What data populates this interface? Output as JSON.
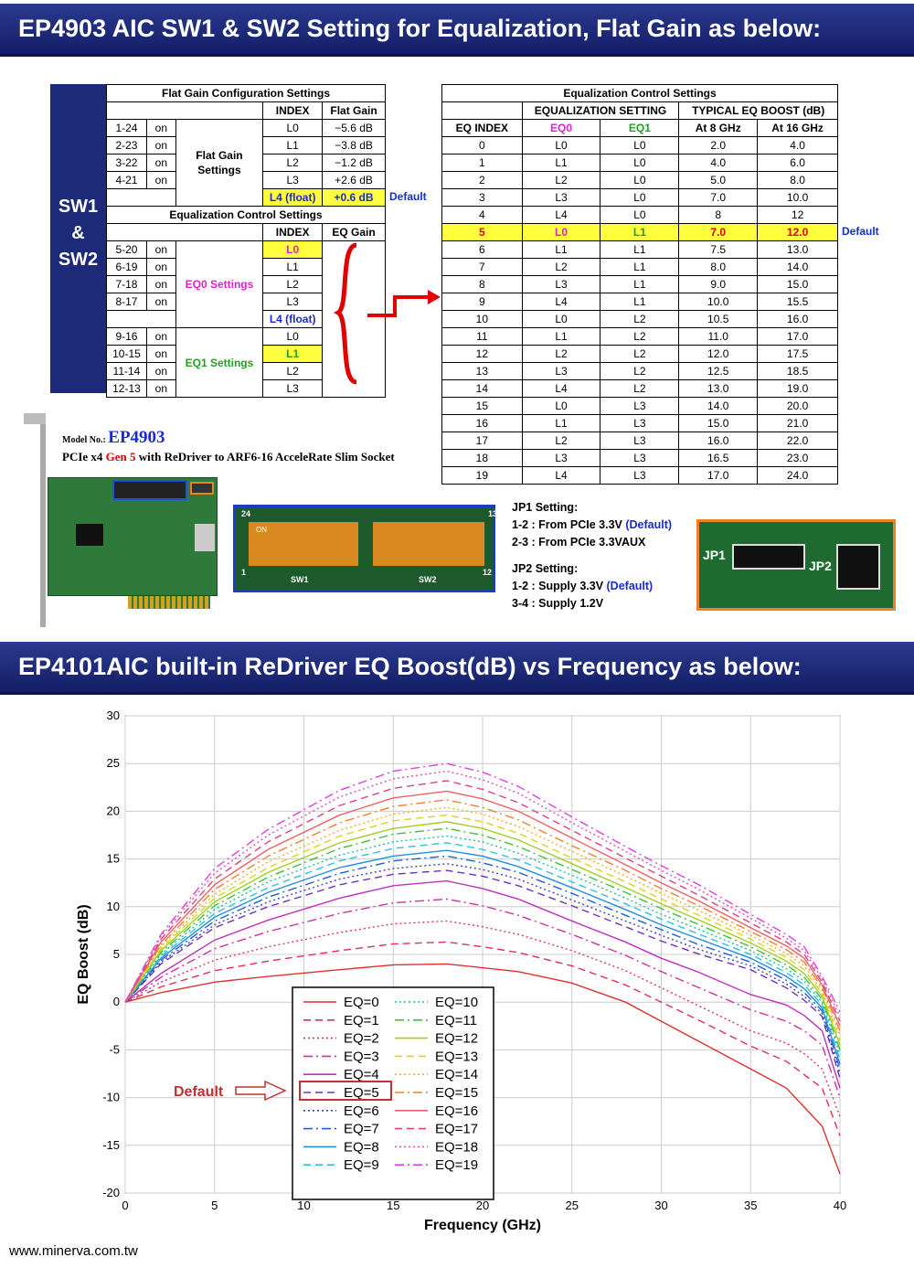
{
  "banner1": "EP4903 AIC SW1 & SW2 Setting for Equalization, Flat Gain as below:",
  "banner2": "EP4101AIC built-in ReDriver EQ Boost(dB) vs Frequency as below:",
  "sw_label": [
    "SW1",
    "&",
    "SW2"
  ],
  "left_table": {
    "title": "Flat Gain Configuration Settings",
    "h_index": "INDEX",
    "h_flat": "Flat Gain",
    "flat_rows": [
      [
        "1-24",
        "on",
        "L0",
        "−5.6 dB"
      ],
      [
        "2-23",
        "on",
        "L1",
        "−3.8 dB"
      ],
      [
        "3-22",
        "on",
        "L2",
        "−1.2 dB"
      ],
      [
        "4-21",
        "on",
        "L3",
        "+2.6 dB"
      ]
    ],
    "flat_group": "Flat Gain Settings",
    "float_idx": "L4 (float)",
    "float_gain": "+0.6 dB",
    "default": "Default",
    "eq_title": "Equalization Control Settings",
    "h_index2": "INDEX",
    "h_eqgain": "EQ Gain",
    "eq0_rows": [
      [
        "5-20",
        "on",
        "L0"
      ],
      [
        "6-19",
        "on",
        "L1"
      ],
      [
        "7-18",
        "on",
        "L2"
      ],
      [
        "8-17",
        "on",
        "L3"
      ]
    ],
    "eq0_float": "L4 (float)",
    "eq0_group": "EQ0 Settings",
    "eq1_rows": [
      [
        "9-16",
        "on",
        "L0"
      ],
      [
        "10-15",
        "on",
        "L1"
      ],
      [
        "11-14",
        "on",
        "L2"
      ],
      [
        "12-13",
        "on",
        "L3"
      ]
    ],
    "eq1_group": "EQ1 Settings"
  },
  "right_table": {
    "title": "Equalization Control Settings",
    "h_eqset": "EQUALIZATION SETTING",
    "h_boost": "TYPICAL EQ BOOST (dB)",
    "h_index": "EQ INDEX",
    "h_eq0": "EQ0",
    "h_eq1": "EQ1",
    "h_8": "At 8 GHz",
    "h_16": "At 16 GHz",
    "rows": [
      [
        "0",
        "L0",
        "L0",
        "2.0",
        "4.0"
      ],
      [
        "1",
        "L1",
        "L0",
        "4.0",
        "6.0"
      ],
      [
        "2",
        "L2",
        "L0",
        "5.0",
        "8.0"
      ],
      [
        "3",
        "L3",
        "L0",
        "7.0",
        "10.0"
      ],
      [
        "4",
        "L4",
        "L0",
        "8",
        "12"
      ],
      [
        "5",
        "L0",
        "L1",
        "7.0",
        "12.0"
      ],
      [
        "6",
        "L1",
        "L1",
        "7.5",
        "13.0"
      ],
      [
        "7",
        "L2",
        "L1",
        "8.0",
        "14.0"
      ],
      [
        "8",
        "L3",
        "L1",
        "9.0",
        "15.0"
      ],
      [
        "9",
        "L4",
        "L1",
        "10.0",
        "15.5"
      ],
      [
        "10",
        "L0",
        "L2",
        "10.5",
        "16.0"
      ],
      [
        "11",
        "L1",
        "L2",
        "11.0",
        "17.0"
      ],
      [
        "12",
        "L2",
        "L2",
        "12.0",
        "17.5"
      ],
      [
        "13",
        "L3",
        "L2",
        "12.5",
        "18.5"
      ],
      [
        "14",
        "L4",
        "L2",
        "13.0",
        "19.0"
      ],
      [
        "15",
        "L0",
        "L3",
        "14.0",
        "20.0"
      ],
      [
        "16",
        "L1",
        "L3",
        "15.0",
        "21.0"
      ],
      [
        "17",
        "L2",
        "L3",
        "16.0",
        "22.0"
      ],
      [
        "18",
        "L3",
        "L3",
        "16.5",
        "23.0"
      ],
      [
        "19",
        "L4",
        "L3",
        "17.0",
        "24.0"
      ]
    ],
    "default": "Default"
  },
  "model": {
    "label": "Model No.:",
    "name": "EP4903",
    "line_pre": "PCIe x4 ",
    "gen": "Gen 5",
    "line_post": " with ReDriver to ARF6-16 AcceleRate Slim Socket"
  },
  "dip": {
    "sw1": "SW1",
    "sw2": "SW2",
    "n24": "24",
    "n13": "13",
    "n12": "12",
    "n1": "1",
    "on": "ON"
  },
  "jp": {
    "jp1_title": "JP1 Setting:",
    "jp1_a": "1-2 : From PCIe 3.3V ",
    "jp1_a_def": "(Default)",
    "jp1_b": "2-3 : From PCIe 3.3VAUX",
    "jp2_title": "JP2 Setting:",
    "jp2_a": "1-2 : Supply 3.3V ",
    "jp2_a_def": "(Default)",
    "jp2_b": "3-4 : Supply 1.2V",
    "photo_jp1": "JP1",
    "photo_jp2": "JP2"
  },
  "chart_data": {
    "type": "line",
    "xlabel": "Frequency (GHz)",
    "ylabel": "EQ Boost (dB)",
    "xlim": [
      0,
      40
    ],
    "ylim": [
      -20,
      30
    ],
    "xticks": [
      0,
      5,
      10,
      15,
      20,
      25,
      30,
      35,
      40
    ],
    "yticks": [
      -20,
      -15,
      -10,
      -5,
      0,
      5,
      10,
      15,
      20,
      25,
      30
    ],
    "grid": true,
    "legend": "bottom-center",
    "x": [
      0,
      2,
      5,
      8,
      12,
      15,
      18,
      20,
      22,
      25,
      28,
      30,
      32,
      35,
      37,
      38,
      39,
      40
    ],
    "series": [
      {
        "name": "EQ=0",
        "color": "#e03030",
        "values": [
          0,
          1.0,
          2.1,
          2.7,
          3.4,
          3.9,
          4.0,
          3.6,
          3.2,
          2.0,
          0,
          -2,
          -4,
          -7,
          -9,
          -11,
          -13,
          -18
        ]
      },
      {
        "name": "EQ=1",
        "color": "#e03050",
        "values": [
          0,
          1.6,
          3.3,
          4.3,
          5.4,
          6.1,
          6.3,
          5.8,
          5.2,
          3.8,
          1.8,
          0,
          -1.8,
          -4.6,
          -6.2,
          -7.6,
          -9,
          -14
        ]
      },
      {
        "name": "EQ=2",
        "color": "#e03070",
        "values": [
          0,
          2.1,
          4.4,
          5.8,
          7.3,
          8.2,
          8.5,
          7.9,
          7.1,
          5.4,
          3.3,
          1.5,
          -0.3,
          -3,
          -4.3,
          -5.4,
          -7,
          -12
        ]
      },
      {
        "name": "EQ=3",
        "color": "#d030a0",
        "values": [
          0,
          2.6,
          5.6,
          7.4,
          9.3,
          10.4,
          10.8,
          10.1,
          9.1,
          7.1,
          4.9,
          3.2,
          1.6,
          -0.8,
          -2,
          -3,
          -4.5,
          -10
        ]
      },
      {
        "name": "EQ=4",
        "color": "#c030c0",
        "values": [
          0,
          3.0,
          6.5,
          8.6,
          10.9,
          12.2,
          12.7,
          11.9,
          10.8,
          8.5,
          6.3,
          4.6,
          3.2,
          0.8,
          -0.3,
          -1.4,
          -3,
          -9
        ]
      },
      {
        "name": "EQ=5",
        "color": "#7030c0",
        "values": [
          0,
          4.0,
          7.8,
          10.0,
          12.3,
          13.4,
          13.8,
          13.2,
          12.2,
          10.1,
          7.9,
          6.4,
          5.1,
          3.4,
          1.5,
          0.2,
          -1.5,
          -8
        ]
      },
      {
        "name": "EQ=6",
        "color": "#4040c0",
        "values": [
          0,
          4.2,
          8.1,
          10.5,
          12.9,
          14.0,
          14.5,
          13.9,
          12.9,
          10.7,
          8.5,
          7.0,
          5.6,
          3.8,
          1.9,
          0.6,
          -1.2,
          -7.5
        ]
      },
      {
        "name": "EQ=7",
        "color": "#2060d0",
        "values": [
          0,
          4.4,
          8.5,
          11.0,
          13.5,
          14.8,
          15.3,
          14.6,
          13.6,
          11.4,
          9.1,
          7.6,
          6.1,
          4.2,
          2.3,
          1.0,
          -0.9,
          -7
        ]
      },
      {
        "name": "EQ=8",
        "color": "#2090e0",
        "values": [
          0,
          4.6,
          8.9,
          11.5,
          14.1,
          15.3,
          15.9,
          15.3,
          14.2,
          12.0,
          9.7,
          8.1,
          6.7,
          4.6,
          2.7,
          1.4,
          -0.6,
          -6.5
        ]
      },
      {
        "name": "EQ=9",
        "color": "#30c0e0",
        "values": [
          0,
          4.8,
          9.3,
          12.0,
          14.8,
          16.1,
          16.7,
          16.0,
          14.9,
          12.6,
          10.3,
          8.7,
          7.2,
          5.0,
          3.1,
          1.8,
          -0.3,
          -6
        ]
      },
      {
        "name": "EQ=10",
        "color": "#20c090",
        "values": [
          0,
          5.0,
          9.7,
          12.6,
          15.4,
          16.8,
          17.4,
          16.8,
          15.6,
          13.3,
          10.9,
          9.2,
          7.7,
          5.4,
          3.5,
          2.2,
          0,
          -5.5
        ]
      },
      {
        "name": "EQ=11",
        "color": "#40c040",
        "values": [
          0,
          5.2,
          10.1,
          13.1,
          16.1,
          17.6,
          18.2,
          17.5,
          16.3,
          13.9,
          11.5,
          9.8,
          8.2,
          5.8,
          3.9,
          2.6,
          0.3,
          -5
        ]
      },
      {
        "name": "EQ=12",
        "color": "#a0d020",
        "values": [
          0,
          5.4,
          10.5,
          13.6,
          16.7,
          18.2,
          18.9,
          18.2,
          17.0,
          14.5,
          12.0,
          10.3,
          8.7,
          6.2,
          4.3,
          3.0,
          0.6,
          -4.5
        ]
      },
      {
        "name": "EQ=13",
        "color": "#e0d020",
        "values": [
          0,
          5.6,
          10.9,
          14.1,
          17.4,
          19.0,
          19.6,
          18.9,
          17.7,
          15.1,
          12.6,
          10.8,
          9.2,
          6.6,
          4.7,
          3.4,
          0.9,
          -4
        ]
      },
      {
        "name": "EQ=14",
        "color": "#f0b020",
        "values": [
          0,
          5.8,
          11.3,
          14.7,
          18.0,
          19.7,
          20.4,
          19.7,
          18.4,
          15.8,
          13.2,
          11.4,
          9.7,
          7.0,
          5.1,
          3.8,
          1.2,
          -3.5
        ]
      },
      {
        "name": "EQ=15",
        "color": "#f08030",
        "values": [
          0,
          6.0,
          11.8,
          15.3,
          18.8,
          20.5,
          21.2,
          20.4,
          19.1,
          16.4,
          13.8,
          11.9,
          10.2,
          7.4,
          5.5,
          4.2,
          1.5,
          -3
        ]
      },
      {
        "name": "EQ=16",
        "color": "#f06060",
        "values": [
          0,
          6.3,
          12.3,
          16.0,
          19.6,
          21.4,
          22.1,
          21.3,
          20.0,
          17.2,
          14.4,
          12.5,
          10.7,
          7.8,
          5.9,
          4.6,
          1.8,
          -2.5
        ]
      },
      {
        "name": "EQ=17",
        "color": "#e04080",
        "values": [
          0,
          6.6,
          12.9,
          16.8,
          20.6,
          22.4,
          23.2,
          22.3,
          20.9,
          18.0,
          15.1,
          13.2,
          11.3,
          8.3,
          6.3,
          5.0,
          2.1,
          -2
        ]
      },
      {
        "name": "EQ=18",
        "color": "#e050b0",
        "values": [
          0,
          6.9,
          13.5,
          17.5,
          21.5,
          23.4,
          24.2,
          23.3,
          21.9,
          18.8,
          15.8,
          13.8,
          11.9,
          8.8,
          6.7,
          5.4,
          2.4,
          -1.5
        ]
      },
      {
        "name": "EQ=19",
        "color": "#e040e0",
        "values": [
          0,
          7.1,
          14.0,
          18.1,
          22.2,
          24.2,
          25.0,
          24.1,
          22.6,
          19.4,
          16.3,
          14.3,
          12.4,
          9.2,
          7.1,
          5.8,
          2.7,
          -1
        ]
      }
    ],
    "default_label": "Default",
    "default_series": "EQ=5"
  },
  "footer": "www.minerva.com.tw"
}
